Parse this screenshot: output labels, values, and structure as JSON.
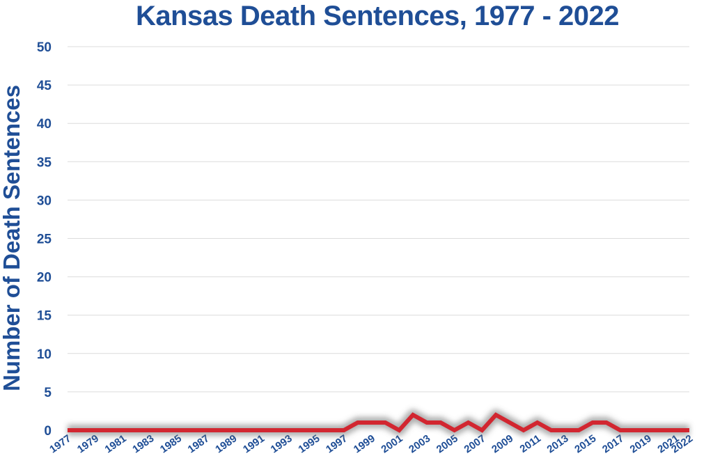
{
  "chart_data": {
    "type": "line",
    "title": "Kansas Death Sentences, 1977 - 2022",
    "xlabel": "",
    "ylabel": "Number of Death Sentences",
    "ylim": [
      0,
      50
    ],
    "yticks": [
      0,
      5,
      10,
      15,
      20,
      25,
      30,
      35,
      40,
      45,
      50
    ],
    "x": [
      1977,
      1978,
      1979,
      1980,
      1981,
      1982,
      1983,
      1984,
      1985,
      1986,
      1987,
      1988,
      1989,
      1990,
      1991,
      1992,
      1993,
      1994,
      1995,
      1996,
      1997,
      1998,
      1999,
      2000,
      2001,
      2002,
      2003,
      2004,
      2005,
      2006,
      2007,
      2008,
      2009,
      2010,
      2011,
      2012,
      2013,
      2014,
      2015,
      2016,
      2017,
      2018,
      2019,
      2020,
      2021,
      2022
    ],
    "xtick_labels": [
      "1977",
      "1979",
      "1981",
      "1983",
      "1985",
      "1987",
      "1989",
      "1991",
      "1993",
      "1995",
      "1997",
      "1999",
      "2001",
      "2003",
      "2005",
      "2007",
      "2009",
      "2011",
      "2013",
      "2015",
      "2017",
      "2019",
      "2021",
      "2022"
    ],
    "series": [
      {
        "values": [
          0,
          0,
          0,
          0,
          0,
          0,
          0,
          0,
          0,
          0,
          0,
          0,
          0,
          0,
          0,
          0,
          0,
          0,
          0,
          0,
          0,
          1,
          1,
          1,
          0,
          2,
          1,
          1,
          0,
          1,
          0,
          2,
          1,
          0,
          1,
          0,
          0,
          0,
          1,
          1,
          0,
          0,
          0,
          0,
          0,
          0
        ],
        "color": "#d22630"
      }
    ],
    "grid": true,
    "legend": "none"
  }
}
